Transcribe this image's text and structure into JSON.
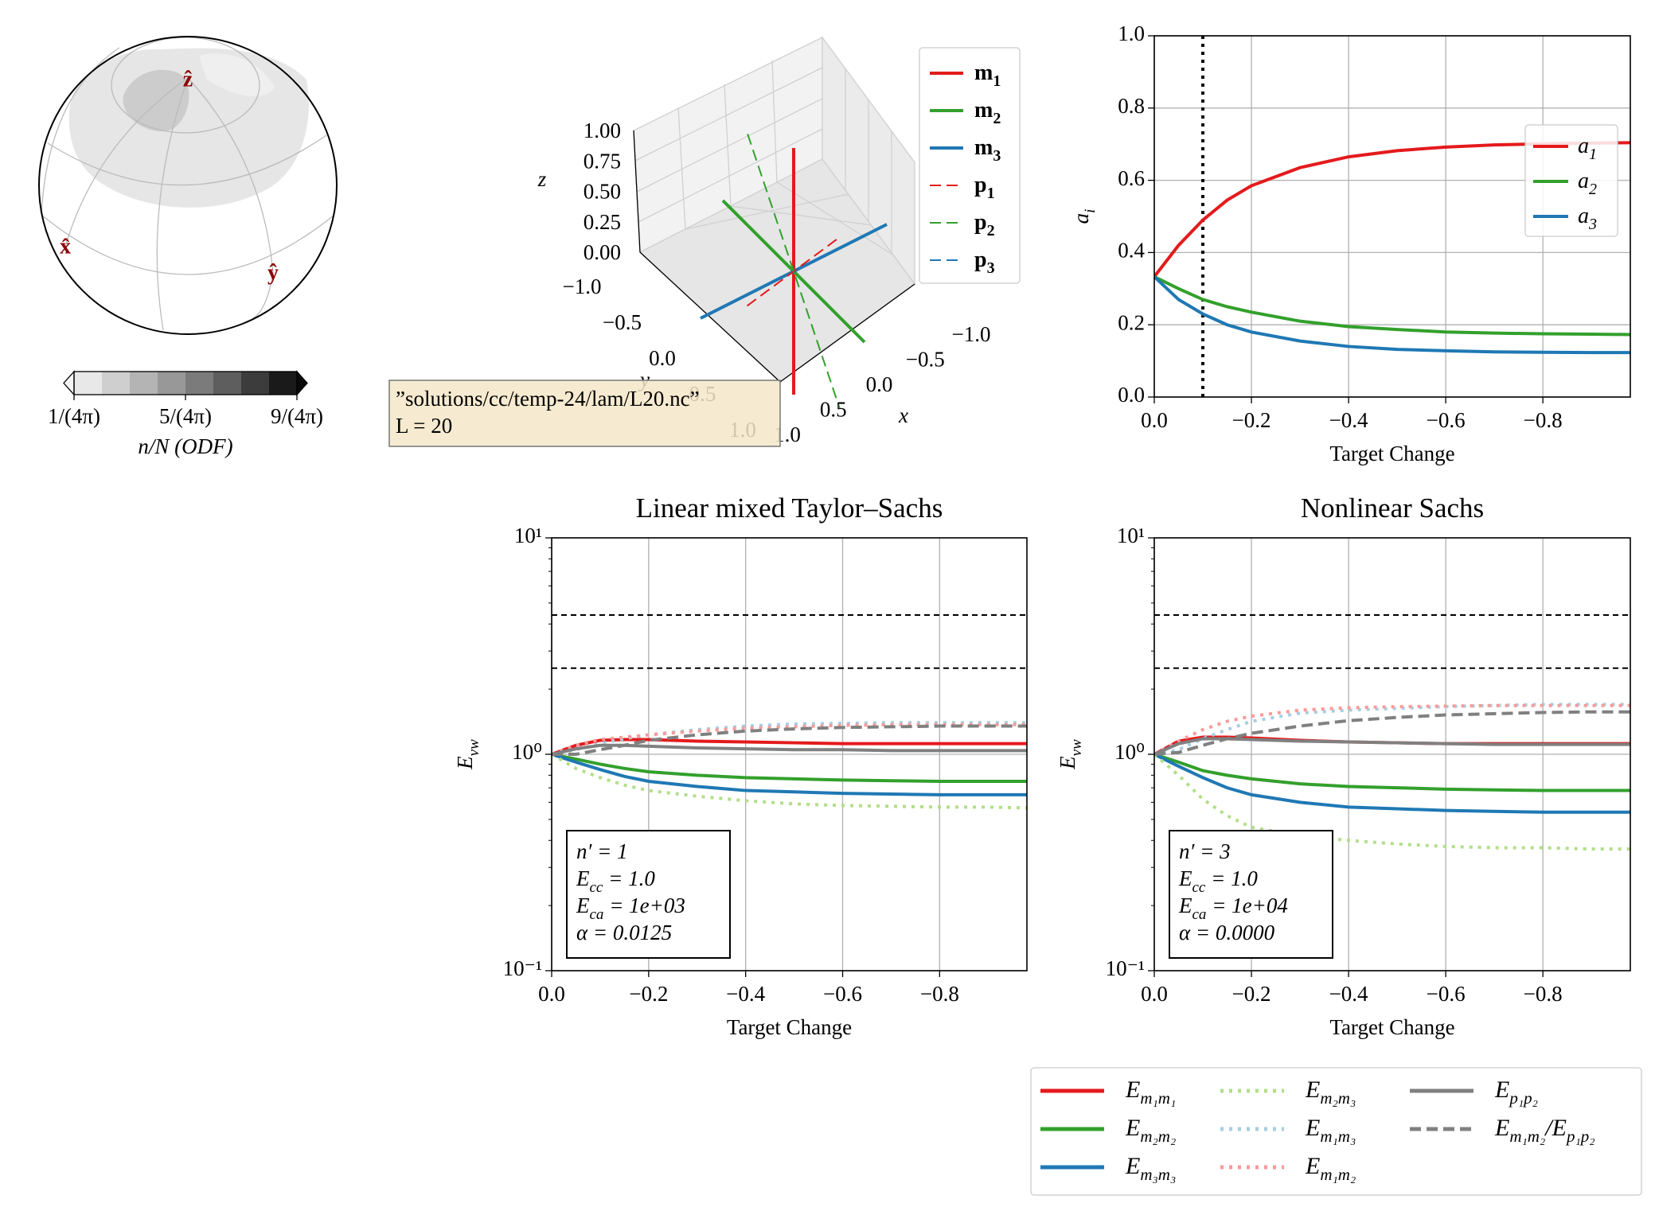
{
  "chart_data": [
    {
      "type": "odf-sphere",
      "axis_labels": [
        "ẑ",
        "x̂",
        "ŷ"
      ],
      "colorbar": {
        "label": "n/N (ODF)",
        "levels": [
          1,
          2,
          3,
          4,
          5,
          6,
          7,
          8,
          9
        ],
        "colors": [
          "#e8e8e8",
          "#cfcfcf",
          "#b4b4b4",
          "#989898",
          "#7b7b7b",
          "#5e5e5e",
          "#3c3c3c",
          "#1a1a1a"
        ],
        "extend_colors": [
          "#f4f4f4",
          "#0a0a0a"
        ],
        "ticks": [
          {
            "value": 1,
            "label": "1/(4π)"
          },
          {
            "value": 5,
            "label": "5/(4π)"
          },
          {
            "value": 9,
            "label": "9/(4π)"
          }
        ]
      }
    },
    {
      "type": "vectors3d",
      "xlabel": "x",
      "ylabel": "y",
      "zlabel": "z",
      "xlim": [
        -1,
        1
      ],
      "ylim": [
        -1,
        1
      ],
      "zlim": [
        0,
        1
      ],
      "xticks": [
        {
          "value": -1,
          "label": "−1.0"
        },
        {
          "value": -0.5,
          "label": "−0.5"
        },
        {
          "value": 0,
          "label": "0.0"
        },
        {
          "value": 0.5,
          "label": "0.5"
        },
        {
          "value": 1,
          "label": "1.0"
        }
      ],
      "yticks": [
        {
          "value": -1,
          "label": "−1.0"
        },
        {
          "value": -0.5,
          "label": "−0.5"
        },
        {
          "value": 0,
          "label": "0.0"
        },
        {
          "value": 0.5,
          "label": "0.5"
        },
        {
          "value": 1,
          "label": "1.0"
        }
      ],
      "zticks": [
        {
          "value": 0,
          "label": "0.00"
        },
        {
          "value": 0.25,
          "label": "0.25"
        },
        {
          "value": 0.5,
          "label": "0.50"
        },
        {
          "value": 0.75,
          "label": "0.75"
        },
        {
          "value": 1,
          "label": "1.00"
        }
      ],
      "series": [
        {
          "name": [
            "m",
            "1"
          ],
          "color": "#e41a1c",
          "dash": "solid",
          "vector": [
            0,
            0,
            1
          ]
        },
        {
          "name": [
            "m",
            "2"
          ],
          "color": "#33a02c",
          "dash": "solid",
          "vector": [
            1,
            0,
            0
          ]
        },
        {
          "name": [
            "m",
            "3"
          ],
          "color": "#1f78b4",
          "dash": "solid",
          "vector": [
            0,
            1,
            0
          ]
        },
        {
          "name": [
            "p",
            "1"
          ],
          "color": "#e41a1c",
          "dash": "dashed",
          "vector": [
            0,
            0.5,
            0.09
          ]
        },
        {
          "name": [
            "p",
            "2"
          ],
          "color": "#33a02c",
          "dash": "dashed",
          "vector": [
            0.65,
            0,
            -0.74
          ]
        },
        {
          "name": [
            "p",
            "3"
          ],
          "color": "#1f78b4",
          "dash": "dashed",
          "vector": [
            0,
            0,
            0
          ]
        }
      ],
      "annotation": [
        "”solutions/cc/temp-24/lam/L20.nc”",
        "L = 20"
      ]
    },
    {
      "type": "line",
      "xlabel": "Target Change",
      "ylabel": [
        "a",
        "i"
      ],
      "x": [
        0,
        -0.05,
        -0.1,
        -0.15,
        -0.2,
        -0.3,
        -0.4,
        -0.5,
        -0.6,
        -0.7,
        -0.8,
        -0.9,
        -0.98
      ],
      "xlim": [
        0,
        -0.98
      ],
      "xticks": [
        {
          "value": 0,
          "label": "0.0"
        },
        {
          "value": -0.2,
          "label": "−0.2"
        },
        {
          "value": -0.4,
          "label": "−0.4"
        },
        {
          "value": -0.6,
          "label": "−0.6"
        },
        {
          "value": -0.8,
          "label": "−0.8"
        }
      ],
      "ylim": [
        0,
        1
      ],
      "yticks": [
        {
          "value": 0,
          "label": "0.0"
        },
        {
          "value": 0.2,
          "label": "0.2"
        },
        {
          "value": 0.4,
          "label": "0.4"
        },
        {
          "value": 0.6,
          "label": "0.6"
        },
        {
          "value": 0.8,
          "label": "0.8"
        },
        {
          "value": 1,
          "label": "1.0"
        }
      ],
      "grid": true,
      "vline": -0.1,
      "legend": "center right",
      "series": [
        {
          "name": [
            "a",
            "1"
          ],
          "color": "#e41a1c",
          "dash": "solid",
          "values": [
            0.333,
            0.42,
            0.49,
            0.545,
            0.585,
            0.635,
            0.665,
            0.682,
            0.692,
            0.698,
            0.701,
            0.703,
            0.704
          ]
        },
        {
          "name": [
            "a",
            "2"
          ],
          "color": "#33a02c",
          "dash": "solid",
          "values": [
            0.333,
            0.3,
            0.27,
            0.25,
            0.235,
            0.21,
            0.195,
            0.187,
            0.18,
            0.177,
            0.175,
            0.174,
            0.173
          ]
        },
        {
          "name": [
            "a",
            "3"
          ],
          "color": "#1f78b4",
          "dash": "solid",
          "values": [
            0.333,
            0.27,
            0.23,
            0.2,
            0.18,
            0.155,
            0.14,
            0.132,
            0.128,
            0.125,
            0.124,
            0.123,
            0.123
          ]
        }
      ]
    },
    {
      "type": "line",
      "title": "Linear mixed Taylor–Sachs",
      "xlabel": "Target Change",
      "ylabel": [
        "E",
        "vw"
      ],
      "x": [
        0,
        -0.05,
        -0.1,
        -0.15,
        -0.2,
        -0.3,
        -0.4,
        -0.5,
        -0.6,
        -0.7,
        -0.8,
        -0.9,
        -0.98
      ],
      "xlim": [
        0,
        -0.98
      ],
      "xticks": [
        {
          "value": 0,
          "label": "0.0"
        },
        {
          "value": -0.2,
          "label": "−0.2"
        },
        {
          "value": -0.4,
          "label": "−0.4"
        },
        {
          "value": -0.6,
          "label": "−0.6"
        },
        {
          "value": -0.8,
          "label": "−0.8"
        }
      ],
      "log_y": true,
      "ylim": [
        0.1,
        10
      ],
      "yticks": [
        {
          "value": 0.1,
          "label": "10⁻¹"
        },
        {
          "value": 1,
          "label": "10⁰"
        },
        {
          "value": 10,
          "label": "10¹"
        }
      ],
      "yminorticks": [
        0.2,
        0.3,
        0.4,
        0.5,
        0.6,
        0.7,
        0.8,
        0.9,
        2,
        3,
        4,
        5,
        6,
        7,
        8,
        9
      ],
      "grid": true,
      "hlines": [
        4.4,
        2.5
      ],
      "legend": "below",
      "annotation": [
        [
          "n′ = 1"
        ],
        [
          "E",
          "cc",
          " = 1.0"
        ],
        [
          "E",
          "ca",
          " = 1e+03"
        ],
        [
          "α = 0.0125"
        ]
      ],
      "series": [
        {
          "name": [
            "E",
            "m₁m₁"
          ],
          "color": "#e41a1c",
          "dash": "solid",
          "values": [
            1,
            1.1,
            1.16,
            1.17,
            1.17,
            1.15,
            1.14,
            1.13,
            1.12,
            1.12,
            1.12,
            1.12,
            1.12
          ]
        },
        {
          "name": [
            "E",
            "m₂m₂"
          ],
          "color": "#33a02c",
          "dash": "solid",
          "values": [
            1,
            0.95,
            0.9,
            0.86,
            0.83,
            0.8,
            0.78,
            0.77,
            0.76,
            0.755,
            0.75,
            0.75,
            0.75
          ]
        },
        {
          "name": [
            "E",
            "m₃m₃"
          ],
          "color": "#1f78b4",
          "dash": "solid",
          "values": [
            1,
            0.92,
            0.85,
            0.79,
            0.75,
            0.71,
            0.68,
            0.67,
            0.66,
            0.655,
            0.65,
            0.65,
            0.65
          ]
        },
        {
          "name": [
            "E",
            "m₂m₃"
          ],
          "color": "#b2df8a",
          "dash": "dotted",
          "values": [
            1,
            0.86,
            0.78,
            0.72,
            0.68,
            0.64,
            0.61,
            0.59,
            0.58,
            0.575,
            0.57,
            0.57,
            0.565
          ]
        },
        {
          "name": [
            "E",
            "m₁m₃"
          ],
          "color": "#a6cee3",
          "dash": "dotted",
          "values": [
            1,
            1.05,
            1.12,
            1.18,
            1.23,
            1.3,
            1.35,
            1.38,
            1.39,
            1.4,
            1.4,
            1.4,
            1.4
          ]
        },
        {
          "name": [
            "E",
            "m₁m₂"
          ],
          "color": "#fb9a99",
          "dash": "dotted",
          "values": [
            1,
            1.1,
            1.17,
            1.2,
            1.23,
            1.28,
            1.32,
            1.34,
            1.36,
            1.37,
            1.37,
            1.37,
            1.37
          ]
        },
        {
          "name": [
            "E",
            "p₁p₂"
          ],
          "color": "#808080",
          "dash": "solid",
          "values": [
            1,
            1.06,
            1.1,
            1.1,
            1.09,
            1.07,
            1.06,
            1.05,
            1.05,
            1.04,
            1.04,
            1.04,
            1.04
          ]
        },
        {
          "name": [
            "E",
            "m₁m₂",
            "/E",
            "p₁p₂"
          ],
          "color": "#808080",
          "dash": "dashed",
          "values": [
            1,
            1,
            1.05,
            1.1,
            1.16,
            1.23,
            1.28,
            1.31,
            1.33,
            1.34,
            1.35,
            1.35,
            1.35
          ]
        }
      ]
    },
    {
      "type": "line",
      "title": "Nonlinear Sachs",
      "xlabel": "Target Change",
      "ylabel": [
        "E",
        "vw"
      ],
      "x": [
        0,
        -0.05,
        -0.1,
        -0.15,
        -0.2,
        -0.3,
        -0.4,
        -0.5,
        -0.6,
        -0.7,
        -0.8,
        -0.9,
        -0.98
      ],
      "xlim": [
        0,
        -0.98
      ],
      "xticks": [
        {
          "value": 0,
          "label": "0.0"
        },
        {
          "value": -0.2,
          "label": "−0.2"
        },
        {
          "value": -0.4,
          "label": "−0.4"
        },
        {
          "value": -0.6,
          "label": "−0.6"
        },
        {
          "value": -0.8,
          "label": "−0.8"
        }
      ],
      "log_y": true,
      "ylim": [
        0.1,
        10
      ],
      "yticks": [
        {
          "value": 0.1,
          "label": "10⁻¹"
        },
        {
          "value": 1,
          "label": "10⁰"
        },
        {
          "value": 10,
          "label": "10¹"
        }
      ],
      "yminorticks": [
        0.2,
        0.3,
        0.4,
        0.5,
        0.6,
        0.7,
        0.8,
        0.9,
        2,
        3,
        4,
        5,
        6,
        7,
        8,
        9
      ],
      "grid": true,
      "hlines": [
        4.4,
        2.5
      ],
      "annotation": [
        [
          "n′ = 3"
        ],
        [
          "E",
          "cc",
          " = 1.0"
        ],
        [
          "E",
          "ca",
          " = 1e+04"
        ],
        [
          "α = 0.0000"
        ]
      ],
      "series": [
        {
          "color": "#e41a1c",
          "dash": "solid",
          "values": [
            1,
            1.15,
            1.2,
            1.2,
            1.19,
            1.16,
            1.14,
            1.13,
            1.12,
            1.12,
            1.12,
            1.12,
            1.12
          ]
        },
        {
          "color": "#33a02c",
          "dash": "solid",
          "values": [
            1,
            0.92,
            0.84,
            0.8,
            0.77,
            0.73,
            0.71,
            0.7,
            0.69,
            0.685,
            0.68,
            0.68,
            0.68
          ]
        },
        {
          "color": "#1f78b4",
          "dash": "solid",
          "values": [
            1,
            0.88,
            0.78,
            0.7,
            0.65,
            0.6,
            0.57,
            0.56,
            0.55,
            0.545,
            0.54,
            0.54,
            0.54
          ]
        },
        {
          "color": "#b2df8a",
          "dash": "dotted",
          "values": [
            1,
            0.8,
            0.62,
            0.52,
            0.46,
            0.42,
            0.4,
            0.385,
            0.375,
            0.37,
            0.37,
            0.365,
            0.365
          ]
        },
        {
          "color": "#a6cee3",
          "dash": "dotted",
          "values": [
            1,
            1.05,
            1.18,
            1.3,
            1.42,
            1.55,
            1.6,
            1.63,
            1.66,
            1.68,
            1.7,
            1.7,
            1.7
          ]
        },
        {
          "color": "#fb9a99",
          "dash": "dotted",
          "values": [
            1,
            1.15,
            1.3,
            1.42,
            1.5,
            1.6,
            1.64,
            1.66,
            1.67,
            1.68,
            1.68,
            1.68,
            1.68
          ]
        },
        {
          "color": "#808080",
          "dash": "solid",
          "values": [
            1,
            1.12,
            1.18,
            1.18,
            1.17,
            1.15,
            1.14,
            1.13,
            1.12,
            1.11,
            1.11,
            1.11,
            1.11
          ]
        },
        {
          "color": "#808080",
          "dash": "dashed",
          "values": [
            1,
            1.02,
            1.1,
            1.18,
            1.25,
            1.35,
            1.43,
            1.48,
            1.52,
            1.54,
            1.56,
            1.57,
            1.57
          ]
        }
      ]
    }
  ]
}
